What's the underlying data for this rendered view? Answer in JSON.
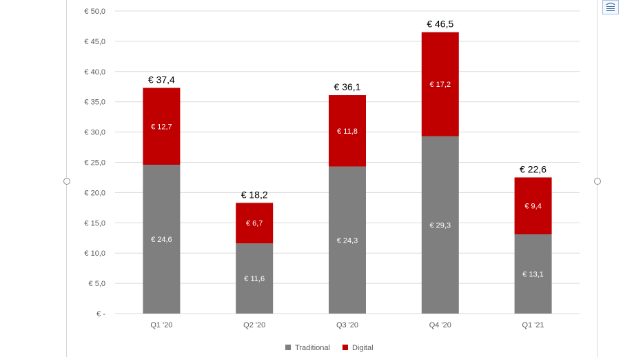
{
  "chart_data": {
    "type": "bar",
    "stacked": true,
    "categories": [
      "Q1 '20",
      "Q2 '20",
      "Q3 '20",
      "Q4 '20",
      "Q1 '21"
    ],
    "series": [
      {
        "name": "Traditional",
        "color": "#7f7f7f",
        "values": [
          24.6,
          11.6,
          24.3,
          29.3,
          13.1
        ],
        "labels": [
          "€ 24,6",
          "€ 11,6",
          "€ 24,3",
          "€ 29,3",
          "€ 13,1"
        ]
      },
      {
        "name": "Digital",
        "color": "#c00000",
        "values": [
          12.7,
          6.7,
          11.8,
          17.2,
          9.4
        ],
        "labels": [
          "€ 12,7",
          "€ 6,7",
          "€ 11,8",
          "€ 17,2",
          "€ 9,4"
        ]
      }
    ],
    "totals": [
      37.4,
      18.2,
      36.1,
      46.5,
      22.6
    ],
    "total_labels": [
      "€ 37,4",
      "€ 18,2",
      "€ 36,1",
      "€ 46,5",
      "€ 22,6"
    ],
    "ylim": [
      0,
      50
    ],
    "y_ticks": [
      0,
      5,
      10,
      15,
      20,
      25,
      30,
      35,
      40,
      45,
      50
    ],
    "y_tick_labels": [
      "€ -",
      "€ 5,0",
      "€ 10,0",
      "€ 15,0",
      "€ 20,0",
      "€ 25,0",
      "€ 30,0",
      "€ 35,0",
      "€ 40,0",
      "€ 45,0",
      "€ 50,0"
    ],
    "title": "",
    "xlabel": "",
    "ylabel": "",
    "grid": true,
    "legend_position": "bottom",
    "gridline_color": "#d9d9d9"
  },
  "ui": {
    "layout_options_icon": "layout-options-icon",
    "frame_handles": "resize-handle"
  }
}
